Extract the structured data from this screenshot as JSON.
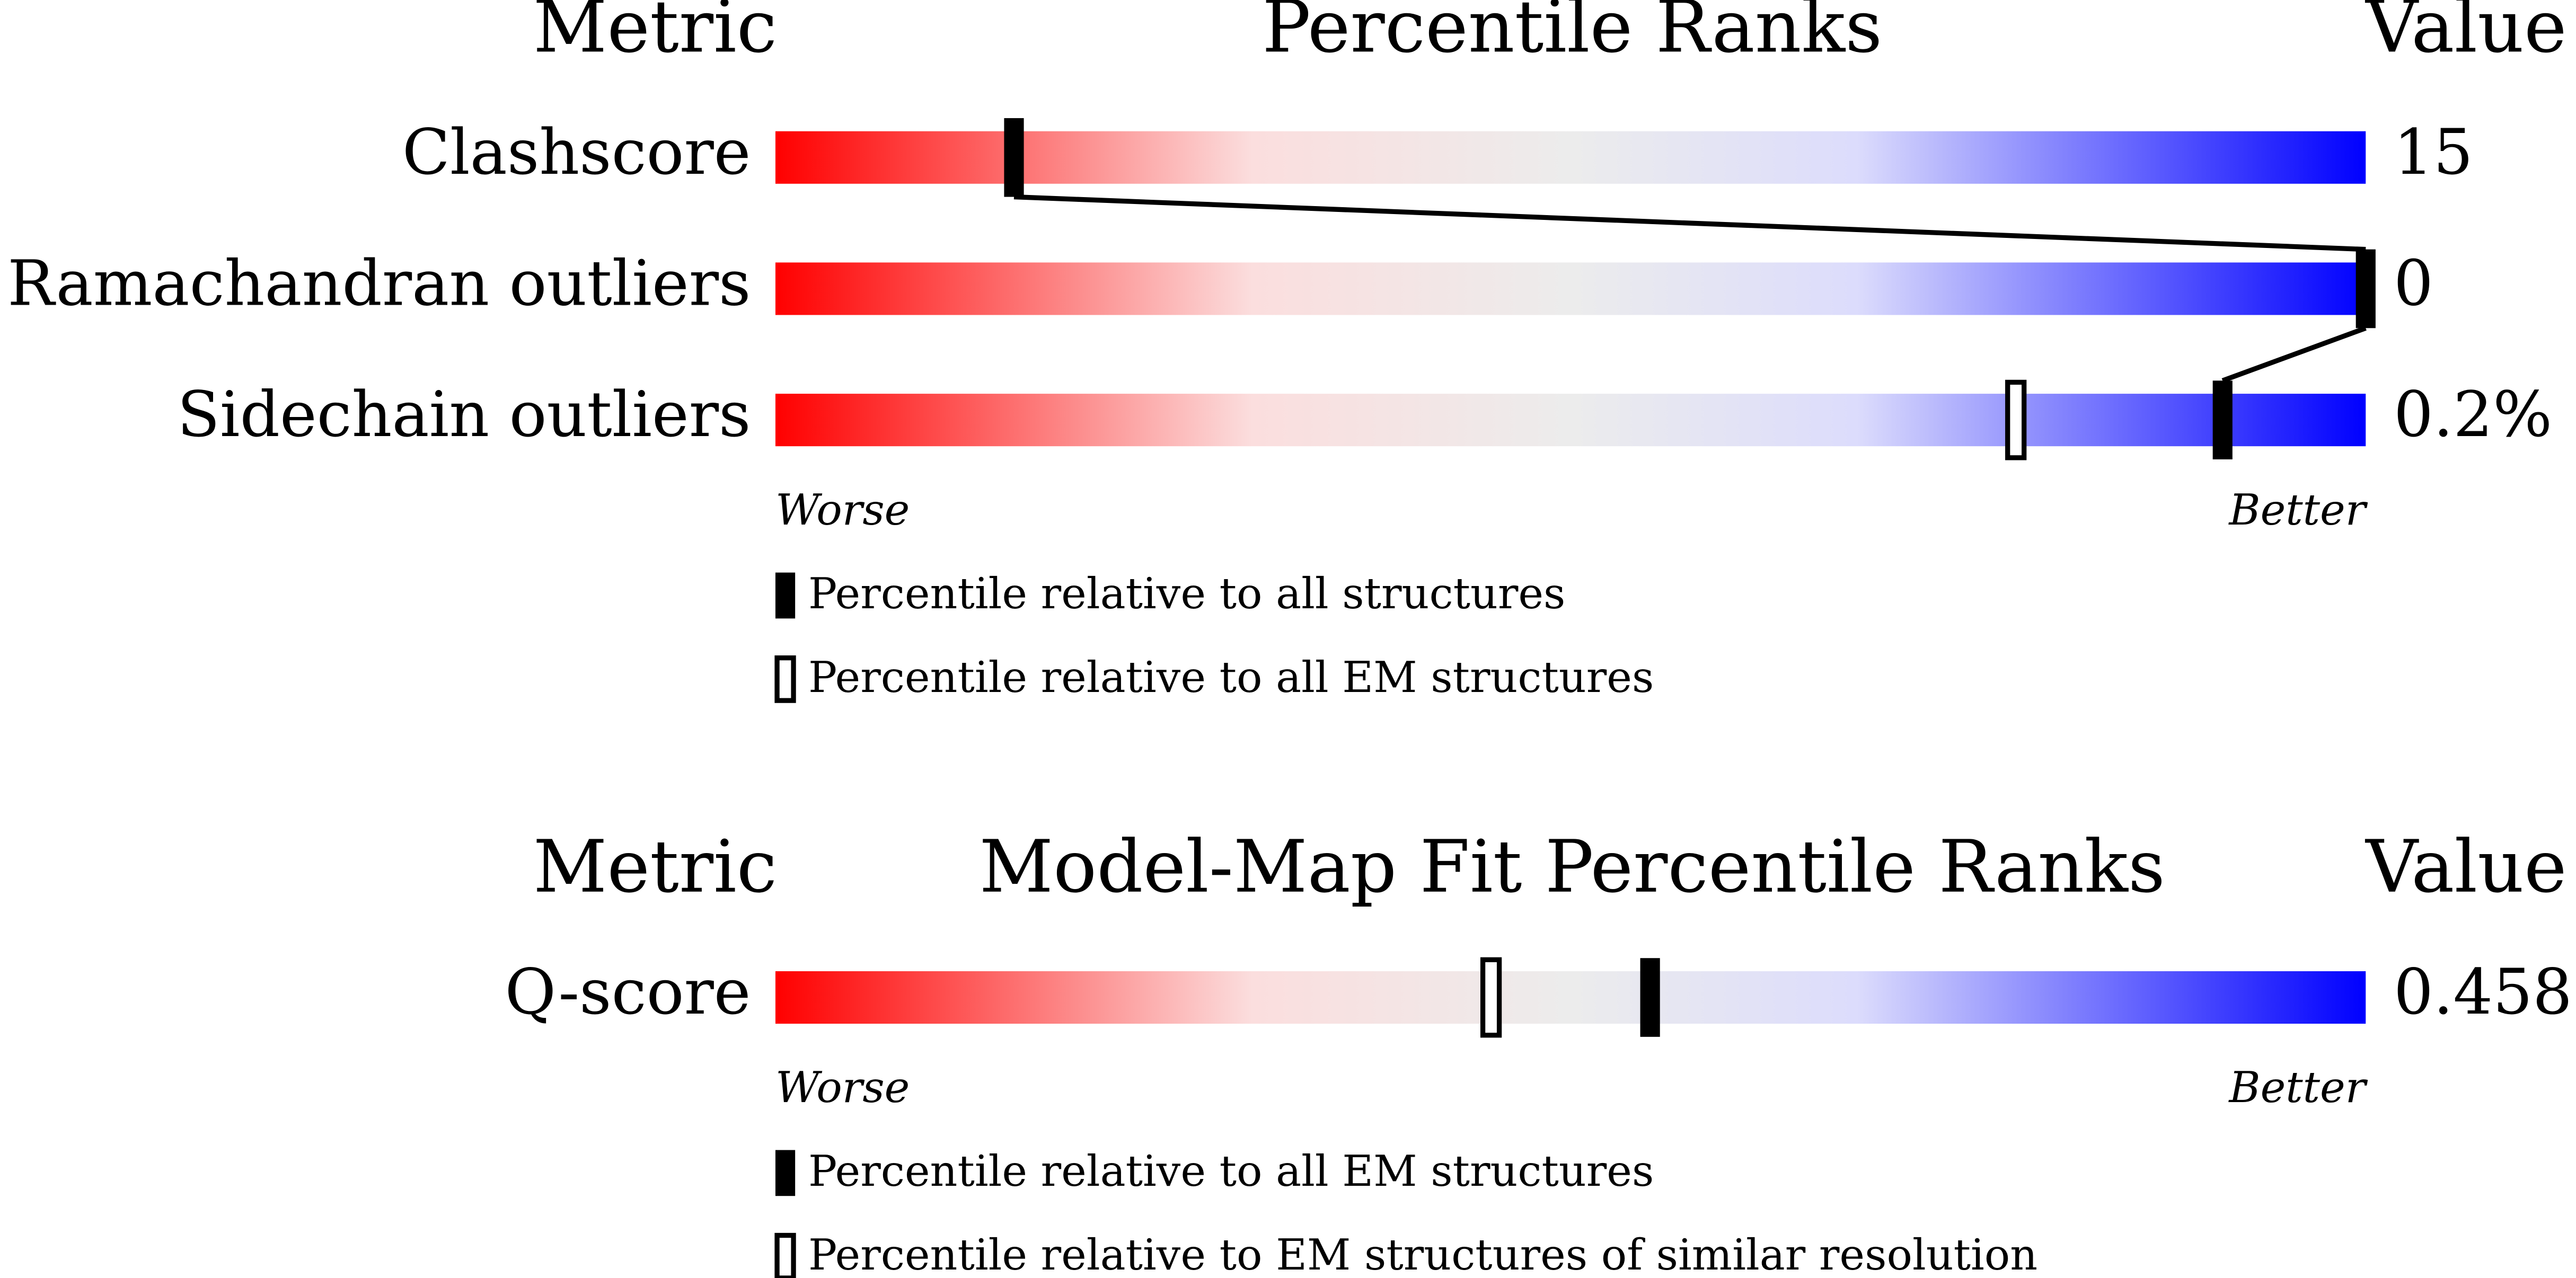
{
  "chart_data": [
    {
      "type": "percentile-slider",
      "header": {
        "metric": "Metric",
        "title": "Percentile Ranks",
        "value": "Value"
      },
      "xlim": [
        0,
        100
      ],
      "metrics": [
        "Clashscore",
        "Ramachandran outliers",
        "Sidechain outliers"
      ],
      "metric_values": [
        "15",
        "0",
        "0.2%"
      ],
      "series": [
        {
          "name": "Percentile relative to all structures",
          "marker": "filled",
          "values": [
            15,
            100,
            91
          ]
        },
        {
          "name": "Percentile relative to all EM structures",
          "marker": "hollow",
          "values": [
            null,
            null,
            78
          ]
        }
      ],
      "scale_labels": {
        "worse": "Worse",
        "better": "Better"
      }
    },
    {
      "type": "percentile-slider",
      "header": {
        "metric": "Metric",
        "title": "Model-Map Fit Percentile Ranks",
        "value": "Value"
      },
      "xlim": [
        0,
        100
      ],
      "metrics": [
        "Q-score"
      ],
      "metric_values": [
        "0.458"
      ],
      "series": [
        {
          "name": "Percentile relative to all EM structures",
          "marker": "filled",
          "values": [
            55
          ]
        },
        {
          "name": "Percentile relative to EM structures of similar resolution",
          "marker": "hollow",
          "values": [
            45
          ]
        }
      ],
      "scale_labels": {
        "worse": "Worse",
        "better": "Better"
      }
    }
  ]
}
